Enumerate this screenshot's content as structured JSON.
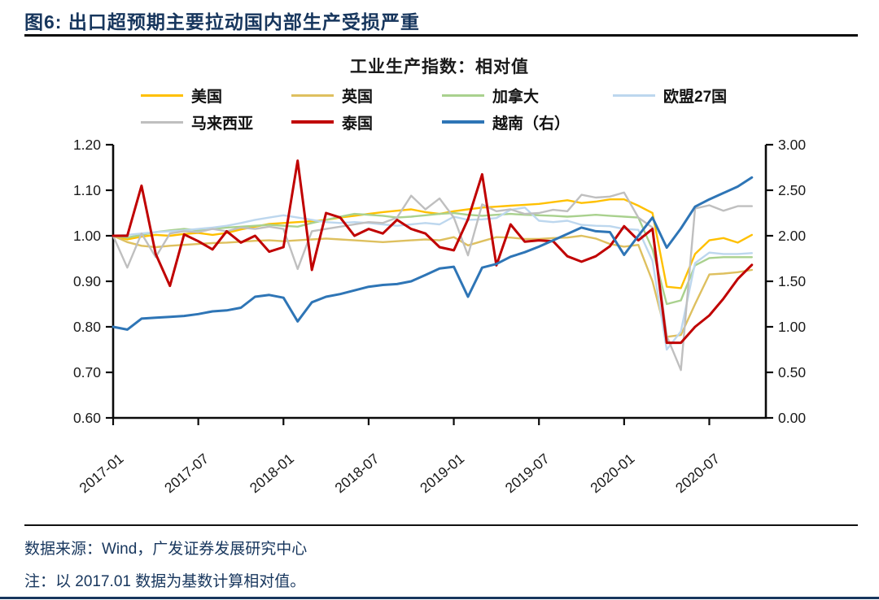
{
  "figure": {
    "title": "图6: 出口超预期主要拉动国内部生产受损严重",
    "source_line": "数据来源：Wind，广发证券发展研究中心",
    "note_line": "注：以 2017.01 数据为基数计算相对值。"
  },
  "colors": {
    "title_navy": "#17365D",
    "axis_black": "#0a0a0a"
  },
  "chart_data": {
    "type": "line",
    "title": "工业生产指数：相对值",
    "x_monthly_range": [
      "2017-01",
      "2020-10"
    ],
    "x_tick_labels": [
      "2017-01",
      "2017-07",
      "2018-01",
      "2018-07",
      "2019-01",
      "2019-07",
      "2020-01",
      "2020-07"
    ],
    "left_axis": {
      "min": 0.6,
      "max": 1.2,
      "tick_step": 0.1,
      "tick_labels": [
        "0.60",
        "0.70",
        "0.80",
        "0.90",
        "1.00",
        "1.10",
        "1.20"
      ]
    },
    "right_axis": {
      "min": 0.0,
      "max": 3.0,
      "tick_step": 0.5,
      "tick_labels": [
        "0.00",
        "0.50",
        "1.00",
        "1.50",
        "2.00",
        "2.50",
        "3.00"
      ]
    },
    "legend_rows": [
      [
        0,
        1,
        2,
        3
      ],
      [
        4,
        5,
        6
      ]
    ],
    "series": [
      {
        "name": "美国",
        "color": "#FFC000",
        "axis": "left",
        "width": 2.4,
        "values": [
          1.0,
          0.992,
          0.998,
          1.002,
          1.0,
          1.004,
          1.006,
          1.002,
          1.006,
          1.014,
          1.02,
          1.026,
          1.028,
          1.03,
          1.032,
          1.035,
          1.04,
          1.044,
          1.048,
          1.052,
          1.055,
          1.058,
          1.052,
          1.048,
          1.054,
          1.058,
          1.062,
          1.064,
          1.066,
          1.068,
          1.07,
          1.074,
          1.078,
          1.072,
          1.075,
          1.08,
          1.08,
          1.066,
          1.05,
          0.888,
          0.885,
          0.96,
          0.99,
          0.995,
          0.985,
          1.002
        ]
      },
      {
        "name": "英国",
        "color": "#DEC05F",
        "axis": "left",
        "width": 2.4,
        "values": [
          1.0,
          0.986,
          0.978,
          0.975,
          0.978,
          0.98,
          0.982,
          0.984,
          0.985,
          0.987,
          0.989,
          0.99,
          0.988,
          0.99,
          0.992,
          0.994,
          0.992,
          0.99,
          0.988,
          0.986,
          0.988,
          0.99,
          0.992,
          0.99,
          0.997,
          0.979,
          0.988,
          0.997,
          0.996,
          0.993,
          0.993,
          0.995,
          0.996,
          1.0,
          0.994,
          0.982,
          0.976,
          0.98,
          0.9,
          0.778,
          0.782,
          0.85,
          0.915,
          0.917,
          0.92,
          0.925
        ]
      },
      {
        "name": "加拿大",
        "color": "#A9D18E",
        "axis": "left",
        "width": 2.4,
        "values": [
          1.0,
          0.996,
          1.002,
          1.008,
          1.012,
          1.015,
          1.012,
          1.015,
          1.018,
          1.02,
          1.022,
          1.024,
          1.022,
          1.02,
          1.028,
          1.035,
          1.042,
          1.048,
          1.046,
          1.044,
          1.04,
          1.042,
          1.045,
          1.048,
          1.05,
          1.046,
          1.044,
          1.046,
          1.048,
          1.046,
          1.045,
          1.044,
          1.042,
          1.044,
          1.046,
          1.044,
          1.042,
          1.04,
          0.97,
          0.85,
          0.858,
          0.935,
          0.951,
          0.953,
          0.953,
          0.953
        ]
      },
      {
        "name": "欧盟27国",
        "color": "#BDD7EE",
        "axis": "left",
        "width": 2.4,
        "values": [
          1.0,
          1.002,
          1.005,
          1.008,
          1.01,
          1.012,
          1.015,
          1.018,
          1.022,
          1.028,
          1.035,
          1.04,
          1.045,
          1.04,
          1.035,
          1.03,
          1.028,
          1.03,
          1.028,
          1.025,
          1.022,
          1.025,
          1.028,
          1.025,
          1.042,
          1.035,
          1.036,
          1.039,
          1.057,
          1.062,
          1.033,
          1.03,
          1.033,
          1.024,
          1.022,
          1.021,
          1.015,
          1.013,
          0.945,
          0.75,
          0.79,
          0.94,
          0.963,
          0.96,
          0.96,
          0.962
        ]
      },
      {
        "name": "马来西亚",
        "color": "#BFBFBF",
        "axis": "left",
        "width": 2.4,
        "values": [
          1.0,
          0.93,
          1.005,
          0.953,
          1.005,
          1.01,
          1.008,
          1.015,
          1.01,
          1.018,
          1.015,
          1.02,
          1.015,
          0.927,
          1.01,
          1.015,
          1.02,
          1.025,
          1.03,
          1.028,
          1.04,
          1.088,
          1.058,
          1.082,
          1.04,
          0.957,
          1.069,
          1.054,
          1.058,
          1.048,
          1.05,
          1.057,
          1.054,
          1.09,
          1.084,
          1.086,
          1.095,
          1.04,
          1.018,
          0.78,
          0.705,
          1.06,
          1.067,
          1.055,
          1.065,
          1.065
        ]
      },
      {
        "name": "泰国",
        "color": "#C00000",
        "axis": "left",
        "width": 3.0,
        "values": [
          1.0,
          1.0,
          1.11,
          0.96,
          0.89,
          1.003,
          0.988,
          0.97,
          1.01,
          0.985,
          1.0,
          0.965,
          0.975,
          1.165,
          0.925,
          1.05,
          1.04,
          1.0,
          1.015,
          1.005,
          1.035,
          1.015,
          1.005,
          0.975,
          0.968,
          1.036,
          1.135,
          0.935,
          1.025,
          0.987,
          0.99,
          0.988,
          0.955,
          0.943,
          0.955,
          0.977,
          1.021,
          0.99,
          1.015,
          0.765,
          0.765,
          0.8,
          0.825,
          0.862,
          0.905,
          0.936
        ]
      },
      {
        "name": "越南（右）",
        "color": "#2E75B6",
        "axis": "right",
        "width": 3.0,
        "values": [
          1.0,
          0.97,
          1.09,
          1.1,
          1.11,
          1.12,
          1.14,
          1.17,
          1.18,
          1.21,
          1.33,
          1.35,
          1.32,
          1.06,
          1.27,
          1.33,
          1.36,
          1.4,
          1.44,
          1.46,
          1.47,
          1.5,
          1.57,
          1.64,
          1.66,
          1.33,
          1.65,
          1.69,
          1.77,
          1.82,
          1.88,
          1.95,
          2.02,
          2.09,
          2.05,
          2.04,
          1.79,
          2.0,
          2.2,
          1.87,
          2.08,
          2.32,
          2.4,
          2.47,
          2.54,
          2.64
        ]
      }
    ]
  }
}
